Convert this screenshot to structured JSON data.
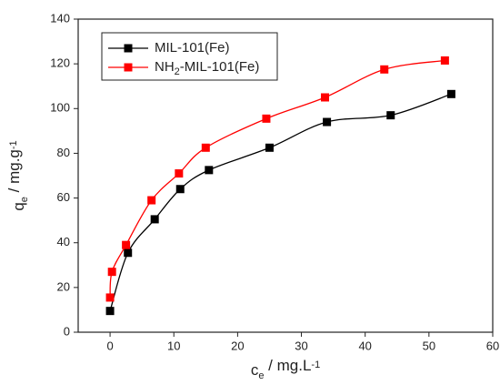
{
  "chart_data": {
    "type": "line",
    "x_label": [
      "c",
      "e",
      " / mg.L",
      "-1"
    ],
    "y_label": [
      "q",
      "e",
      " / mg.g",
      "-1"
    ],
    "series": [
      {
        "name": "MIL-101(Fe)",
        "color": "#000000",
        "x": [
          0,
          2.8,
          7,
          11,
          15.5,
          25,
          34,
          44,
          53.5
        ],
        "values": [
          9.5,
          35.5,
          50.5,
          64,
          72.5,
          82.5,
          94,
          97,
          106.5
        ]
      },
      {
        "name": "NH2-MIL-101(Fe)",
        "color": "#ff0000",
        "x": [
          0,
          0.3,
          2.5,
          6.5,
          10.8,
          15,
          24.5,
          33.7,
          43,
          52.5
        ],
        "values": [
          15.5,
          27,
          39,
          59,
          71,
          82.5,
          95.5,
          105,
          117.5,
          121.5
        ]
      }
    ],
    "xlim": [
      -5,
      60
    ],
    "xticks": [
      0,
      10,
      20,
      30,
      40,
      50,
      60
    ],
    "ylim": [
      0,
      140
    ],
    "yticks": [
      0,
      20,
      40,
      60,
      80,
      100,
      120,
      140
    ],
    "legend": "upper left"
  }
}
